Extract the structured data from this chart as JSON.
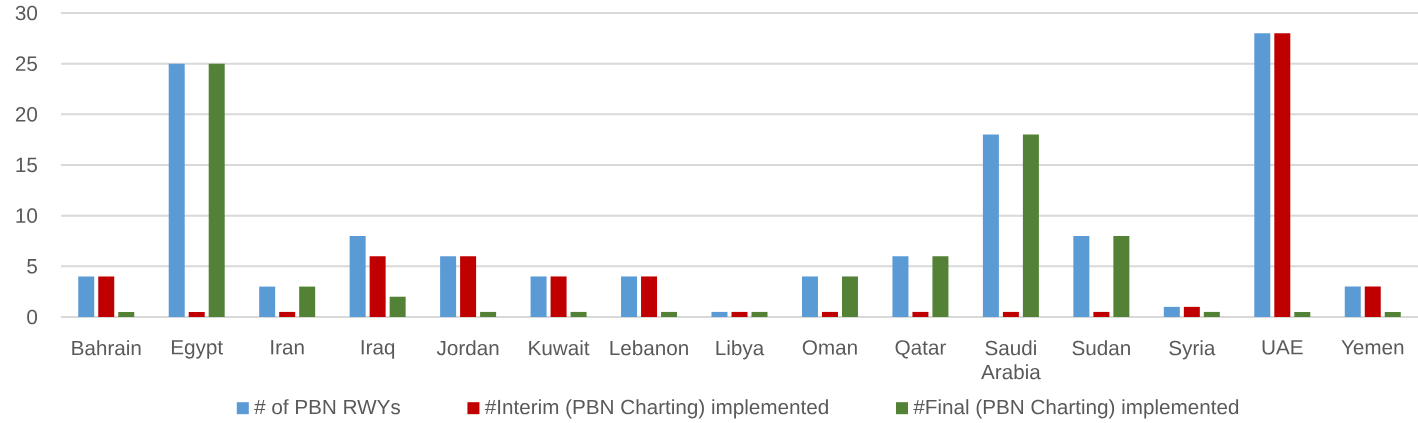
{
  "chart_data": {
    "type": "bar",
    "categories": [
      "Bahrain",
      "Egypt",
      "Iran",
      "Iraq",
      "Jordan",
      "Kuwait",
      "Lebanon",
      "Libya",
      "Oman",
      "Qatar",
      "Saudi Arabia",
      "Sudan",
      "Syria",
      "UAE",
      "Yemen"
    ],
    "series": [
      {
        "name": "# of PBN RWYs",
        "color": "#5b9bd5",
        "values": [
          4,
          25,
          3,
          8,
          6,
          4,
          4,
          0.5,
          4,
          6,
          18,
          8,
          1,
          28,
          3
        ]
      },
      {
        "name": "#Interim (PBN Charting) implemented",
        "color": "#c00000",
        "values": [
          4,
          0.5,
          0.5,
          6,
          6,
          4,
          4,
          0.5,
          0.5,
          0.5,
          0.5,
          0.5,
          1,
          28,
          3
        ]
      },
      {
        "name": "#Final (PBN Charting) implemented",
        "color": "#538135",
        "values": [
          0.5,
          25,
          3,
          2,
          0.5,
          0.5,
          0.5,
          0.5,
          4,
          6,
          18,
          8,
          0.5,
          0.5,
          0.5
        ]
      }
    ],
    "ylim": [
      0,
      30
    ],
    "yticks": [
      0,
      5,
      10,
      15,
      20,
      25,
      30
    ],
    "grid": "y",
    "legend": "bottom"
  }
}
